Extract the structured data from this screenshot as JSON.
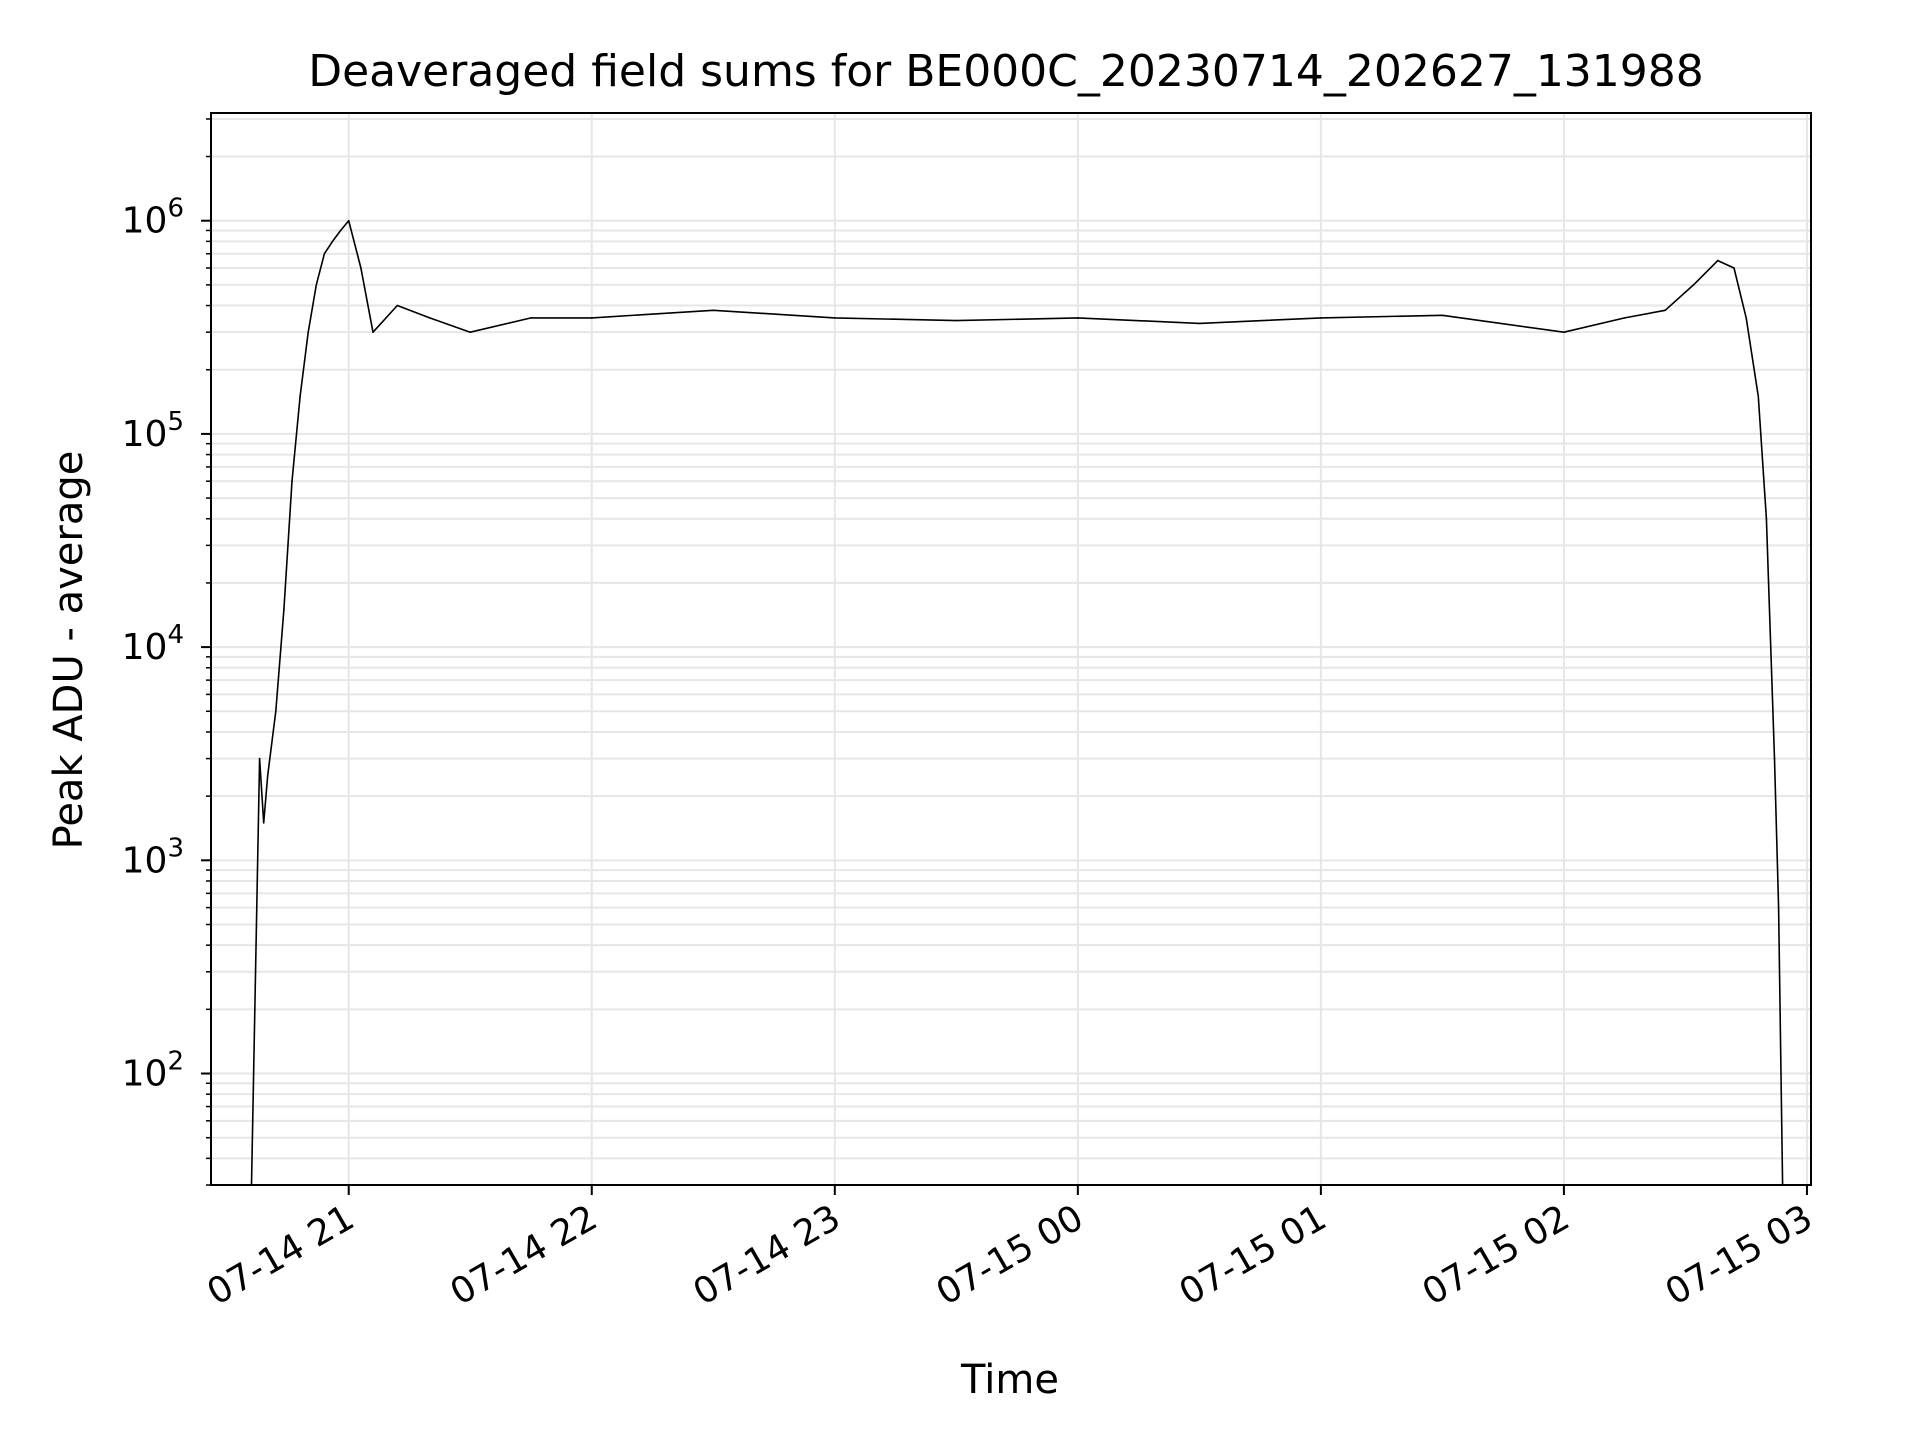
{
  "chart_data": {
    "type": "line",
    "title": "Deaveraged field sums for BE000C_20230714_202627_131988",
    "xlabel": "Time",
    "ylabel": "Peak ADU - average",
    "yscale": "log",
    "ylim": [
      30,
      3200000
    ],
    "xlim": [
      "07-14 20:26",
      "07-15 03:01"
    ],
    "x_ticks": [
      "07-14 21",
      "07-14 22",
      "07-14 23",
      "07-15 00",
      "07-15 01",
      "07-15 02",
      "07-15 03"
    ],
    "y_ticks": [
      {
        "value": 100,
        "base": "10",
        "exp": "2"
      },
      {
        "value": 1000,
        "base": "10",
        "exp": "3"
      },
      {
        "value": 10000,
        "base": "10",
        "exp": "4"
      },
      {
        "value": 100000,
        "base": "10",
        "exp": "5"
      },
      {
        "value": 1000000,
        "base": "10",
        "exp": "6"
      }
    ],
    "grid": true,
    "line_color": "#000000",
    "grid_color": "#e6e6e6",
    "series": [
      {
        "x": [
          "07-14 20:36",
          "07-14 20:38",
          "07-14 20:39",
          "07-14 20:40",
          "07-14 20:42",
          "07-14 20:44",
          "07-14 20:46",
          "07-14 20:48",
          "07-14 20:50",
          "07-14 20:52",
          "07-14 20:54",
          "07-14 20:56",
          "07-14 20:58",
          "07-14 21:00",
          "07-14 21:03",
          "07-14 21:06",
          "07-14 21:12",
          "07-14 21:20",
          "07-14 21:30",
          "07-14 21:45",
          "07-14 22:00",
          "07-14 22:30",
          "07-14 23:00",
          "07-14 23:30",
          "07-15 00:00",
          "07-15 00:30",
          "07-15 01:00",
          "07-15 01:30",
          "07-15 02:00",
          "07-15 02:15",
          "07-15 02:25",
          "07-15 02:32",
          "07-15 02:38",
          "07-15 02:42",
          "07-15 02:45",
          "07-15 02:48",
          "07-15 02:50",
          "07-15 02:52",
          "07-15 02:53",
          "07-15 02:54"
        ],
        "y": [
          30,
          3000,
          1500,
          2500,
          5000,
          15000,
          60000,
          150000,
          300000,
          500000,
          700000,
          800000,
          900000,
          1000000,
          600000,
          300000,
          400000,
          350000,
          300000,
          350000,
          350000,
          380000,
          350000,
          340000,
          350000,
          330000,
          350000,
          360000,
          300000,
          350000,
          380000,
          500000,
          650000,
          600000,
          350000,
          150000,
          40000,
          3000,
          600,
          30
        ]
      }
    ]
  }
}
